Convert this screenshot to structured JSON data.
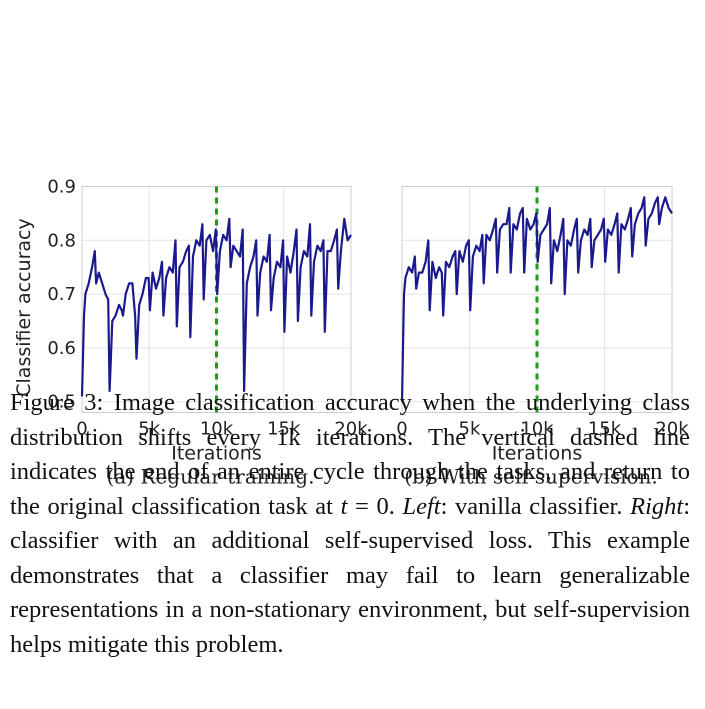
{
  "chart_data": [
    {
      "type": "line",
      "subtitle": "(a) Regular training.",
      "xlabel": "Iterations",
      "ylabel": "Classifier accuracy",
      "xlim": [
        0,
        20000
      ],
      "ylim": [
        0.48,
        0.9
      ],
      "x_ticks": [
        0,
        5000,
        10000,
        15000,
        20000
      ],
      "x_tick_labels": [
        "0",
        "5k",
        "10k",
        "15k",
        "20k"
      ],
      "y_ticks": [
        0.5,
        0.6,
        0.7,
        0.8,
        0.9
      ],
      "y_tick_labels": [
        "0.5",
        "0.6",
        "0.7",
        "0.8",
        "0.9"
      ],
      "grid": true,
      "vline_x": 10000,
      "line_color": "#1a1a8c",
      "vline_color": "#1f9a1f",
      "series": [
        {
          "x": [
            0,
            150,
            250,
            500,
            750,
            950,
            1050,
            1250,
            1500,
            1750,
            1950,
            2050,
            2250,
            2500,
            2750,
            2950,
            3050,
            3250,
            3500,
            3750,
            3950,
            4050,
            4250,
            4500,
            4750,
            4950,
            5050,
            5250,
            5500,
            5750,
            5950,
            6050,
            6250,
            6500,
            6750,
            6950,
            7050,
            7250,
            7500,
            7750,
            7950,
            8050,
            8250,
            8500,
            8750,
            8950,
            9050,
            9250,
            9500,
            9750,
            9950,
            10050,
            10250,
            10500,
            10750,
            10950,
            11050,
            11250,
            11500,
            11750,
            11950,
            12050,
            12250,
            12500,
            12750,
            12950,
            13050,
            13250,
            13500,
            13750,
            13950,
            14050,
            14250,
            14500,
            14750,
            14950,
            15050,
            15250,
            15500,
            15750,
            15950,
            16050,
            16250,
            16500,
            16750,
            16950,
            17050,
            17250,
            17500,
            17750,
            17950,
            18050,
            18250,
            18500,
            18750,
            18950,
            19050,
            19250,
            19500,
            19750,
            20000
          ],
          "y": [
            0.51,
            0.66,
            0.7,
            0.72,
            0.75,
            0.78,
            0.72,
            0.74,
            0.72,
            0.7,
            0.69,
            0.52,
            0.65,
            0.66,
            0.68,
            0.67,
            0.66,
            0.7,
            0.72,
            0.72,
            0.66,
            0.58,
            0.68,
            0.7,
            0.73,
            0.73,
            0.67,
            0.74,
            0.71,
            0.73,
            0.76,
            0.66,
            0.73,
            0.75,
            0.74,
            0.8,
            0.64,
            0.75,
            0.76,
            0.78,
            0.79,
            0.62,
            0.77,
            0.8,
            0.79,
            0.83,
            0.69,
            0.8,
            0.81,
            0.78,
            0.82,
            0.7,
            0.78,
            0.81,
            0.8,
            0.84,
            0.75,
            0.79,
            0.78,
            0.77,
            0.82,
            0.52,
            0.72,
            0.75,
            0.77,
            0.8,
            0.66,
            0.74,
            0.77,
            0.76,
            0.81,
            0.67,
            0.73,
            0.76,
            0.75,
            0.8,
            0.63,
            0.77,
            0.74,
            0.78,
            0.82,
            0.65,
            0.75,
            0.78,
            0.77,
            0.83,
            0.66,
            0.76,
            0.79,
            0.78,
            0.8,
            0.63,
            0.78,
            0.78,
            0.8,
            0.82,
            0.71,
            0.78,
            0.84,
            0.8,
            0.81
          ]
        }
      ]
    },
    {
      "type": "line",
      "subtitle": "(b) With self-supervision.",
      "xlabel": "Iterations",
      "xlim": [
        0,
        20000
      ],
      "ylim": [
        0.48,
        0.9
      ],
      "x_ticks": [
        0,
        5000,
        10000,
        15000,
        20000
      ],
      "x_tick_labels": [
        "0",
        "5k",
        "10k",
        "15k",
        "20k"
      ],
      "y_ticks": [
        0.5,
        0.6,
        0.7,
        0.8,
        0.9
      ],
      "grid": true,
      "vline_x": 10000,
      "line_color": "#1a1a8c",
      "vline_color": "#1f9a1f",
      "series": [
        {
          "x": [
            0,
            150,
            250,
            500,
            750,
            950,
            1050,
            1250,
            1500,
            1750,
            1950,
            2050,
            2250,
            2500,
            2750,
            2950,
            3050,
            3250,
            3500,
            3750,
            3950,
            4050,
            4250,
            4500,
            4750,
            4950,
            5050,
            5250,
            5500,
            5750,
            5950,
            6050,
            6250,
            6500,
            6750,
            6950,
            7050,
            7250,
            7500,
            7750,
            7950,
            8050,
            8250,
            8500,
            8750,
            8950,
            9050,
            9250,
            9500,
            9750,
            9950,
            10050,
            10250,
            10500,
            10750,
            10950,
            11050,
            11250,
            11500,
            11750,
            11950,
            12050,
            12250,
            12500,
            12750,
            12950,
            13050,
            13250,
            13500,
            13750,
            13950,
            14050,
            14250,
            14500,
            14750,
            14950,
            15050,
            15250,
            15500,
            15750,
            15950,
            16050,
            16250,
            16500,
            16750,
            16950,
            17050,
            17250,
            17500,
            17750,
            17950,
            18050,
            18250,
            18500,
            18750,
            18950,
            19050,
            19250,
            19500,
            19750,
            20000
          ],
          "y": [
            0.5,
            0.7,
            0.73,
            0.75,
            0.74,
            0.77,
            0.71,
            0.74,
            0.74,
            0.76,
            0.8,
            0.67,
            0.76,
            0.73,
            0.75,
            0.74,
            0.66,
            0.76,
            0.75,
            0.77,
            0.78,
            0.7,
            0.78,
            0.76,
            0.79,
            0.8,
            0.67,
            0.77,
            0.79,
            0.78,
            0.81,
            0.72,
            0.81,
            0.8,
            0.82,
            0.84,
            0.74,
            0.82,
            0.83,
            0.83,
            0.86,
            0.74,
            0.83,
            0.82,
            0.85,
            0.86,
            0.74,
            0.84,
            0.82,
            0.83,
            0.85,
            0.76,
            0.81,
            0.82,
            0.83,
            0.86,
            0.72,
            0.8,
            0.78,
            0.81,
            0.84,
            0.7,
            0.8,
            0.79,
            0.82,
            0.84,
            0.74,
            0.8,
            0.82,
            0.81,
            0.84,
            0.75,
            0.8,
            0.81,
            0.82,
            0.84,
            0.76,
            0.82,
            0.81,
            0.83,
            0.85,
            0.74,
            0.83,
            0.82,
            0.84,
            0.86,
            0.77,
            0.83,
            0.85,
            0.86,
            0.88,
            0.79,
            0.84,
            0.85,
            0.87,
            0.88,
            0.83,
            0.86,
            0.88,
            0.86,
            0.85
          ]
        }
      ]
    }
  ],
  "caption": {
    "label": "Figure 3:",
    "text1": "Image classification accuracy when the underlying class distribution shifts every 1k iterations. The vertical dashed line indicates the end of an entire cycle through the tasks, and return to the original classification task at ",
    "math_var": "t",
    "math_rest": " = 0.",
    "left_label": "Left",
    "text2": ": vanilla classifier. ",
    "right_label": "Right",
    "text3": ": classifier with an additional self-supervised loss. This example demonstrates that a classifier may fail to learn generalizable representations in a non-stationary environment, but self-supervision helps mitigate this problem."
  }
}
